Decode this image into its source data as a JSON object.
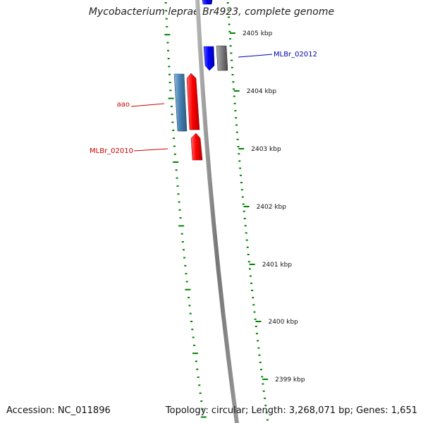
{
  "title": "Mycobacterium leprae Br4923, complete genome",
  "footer": {
    "accession": "Accession: NC_011896",
    "summary": "Topology: circular; Length: 3,268,071 bp; Genes: 1,651"
  },
  "colors": {
    "forward_gene": "#ff0000",
    "reverse_gene": "#0000ff",
    "rrna_like": "#4682b4",
    "other_gene": "#808080",
    "tick": "#008000",
    "backbone": "#888888"
  },
  "scale_labels": [
    {
      "kbp": 2405,
      "text": "2405 kbp"
    },
    {
      "kbp": 2404,
      "text": "2404 kbp"
    },
    {
      "kbp": 2403,
      "text": "2403 kbp"
    },
    {
      "kbp": 2402,
      "text": "2402 kbp"
    },
    {
      "kbp": 2401,
      "text": "2401 kbp"
    },
    {
      "kbp": 2400,
      "text": "2400 kbp"
    },
    {
      "kbp": 2399,
      "text": "2399 kbp"
    }
  ],
  "gene_labels": [
    {
      "name": "MLBr_02012",
      "color": "#0000aa"
    },
    {
      "name": "aao",
      "color": "#cc0000"
    },
    {
      "name": "MLBr_02010",
      "color": "#cc0000"
    }
  ]
}
